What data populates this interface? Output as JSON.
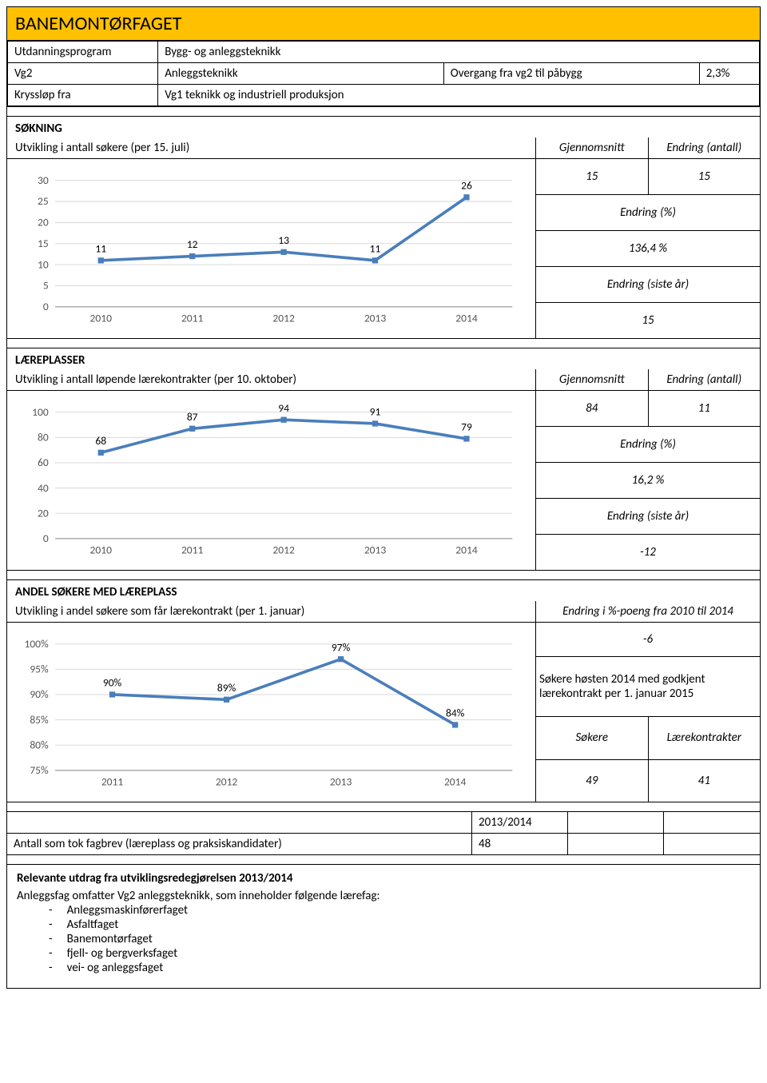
{
  "title": "BANEMONTØRFAGET",
  "info": {
    "rows": [
      [
        "Utdanningsprogram",
        "Bygg- og anleggsteknikk",
        "",
        ""
      ],
      [
        "Vg2",
        "Anleggsteknikk",
        "Overgang fra vg2 til påbygg",
        "2,3%"
      ],
      [
        "Kryssløp fra",
        "Vg1 teknikk og industriell produksjon",
        "",
        ""
      ]
    ]
  },
  "sokning": {
    "heading": "SØKNING",
    "subheading": "Utvikling i antall søkere (per 15. juli)",
    "stats_header": [
      "Gjennomsnitt",
      "Endring (antall)"
    ],
    "chart": {
      "type": "line",
      "categories": [
        "2010",
        "2011",
        "2012",
        "2013",
        "2014"
      ],
      "values": [
        11,
        12,
        13,
        11,
        26
      ],
      "line_color": "#4a7ebb",
      "marker_color": "#4a7ebb",
      "label_color": "#000000",
      "ymin": 0,
      "ymax": 30,
      "ystep": 5,
      "grid_color": "#d9d9d9",
      "axis_color": "#888888",
      "label_fontsize": 13,
      "tick_fontsize": 13
    },
    "stats": {
      "avg": "15",
      "change_abs": "15",
      "change_pct_label": "Endring (%)",
      "change_pct": "136,4 %",
      "change_last_label": "Endring (siste år)",
      "change_last": "15"
    }
  },
  "laereplasser": {
    "heading": "LÆREPLASSER",
    "subheading": "Utvikling i antall løpende lærekontrakter (per 10. oktober)",
    "stats_header": [
      "Gjennomsnitt",
      "Endring (antall)"
    ],
    "chart": {
      "type": "line",
      "categories": [
        "2010",
        "2011",
        "2012",
        "2013",
        "2014"
      ],
      "values": [
        68,
        87,
        94,
        91,
        79
      ],
      "line_color": "#4a7ebb",
      "marker_color": "#4a7ebb",
      "ymin": 0,
      "ymax": 100,
      "ystep": 20,
      "grid_color": "#d9d9d9",
      "axis_color": "#888888",
      "label_fontsize": 13,
      "tick_fontsize": 13
    },
    "stats": {
      "avg": "84",
      "change_abs": "11",
      "change_pct_label": "Endring (%)",
      "change_pct": "16,2 %",
      "change_last_label": "Endring (siste år)",
      "change_last": "-12"
    }
  },
  "andel": {
    "heading": "ANDEL SØKERE MED LÆREPLASS",
    "subheading": "Utvikling i andel søkere som får lærekontrakt (per 1. januar)",
    "stats_header_single": "Endring i %-poeng fra 2010 til 2014",
    "chart": {
      "type": "line",
      "categories": [
        "2011",
        "2012",
        "2013",
        "2014"
      ],
      "values": [
        90,
        89,
        97,
        84
      ],
      "value_labels": [
        "90%",
        "89%",
        "97%",
        "84%"
      ],
      "line_color": "#4a7ebb",
      "marker_color": "#4a7ebb",
      "ymin": 75,
      "ymax": 100,
      "ystep": 5,
      "ytick_suffix": "%",
      "grid_color": "#d9d9d9",
      "axis_color": "#888888",
      "label_fontsize": 13,
      "tick_fontsize": 13
    },
    "stats": {
      "change_val": "-6",
      "godkjent_text": "Søkere høsten 2014 med godkjent lærekontrakt per 1. januar 2015",
      "cols": [
        "Søkere",
        "Lærekontrakter"
      ],
      "sokere": "49",
      "kontrakter": "41"
    }
  },
  "fagbrev": {
    "col_header": "2013/2014",
    "label": "Antall som tok fagbrev (læreplass og praksiskandidater)",
    "value": "48"
  },
  "relevante": {
    "heading": "Relevante utdrag fra utviklingsredegjørelsen 2013/2014",
    "intro": "Anleggsfag omfatter Vg2 anleggsteknikk, som inneholder følgende lærefag:",
    "items": [
      "Anleggsmaskinførerfaget",
      "Asfaltfaget",
      "Banemontørfaget",
      "fjell- og bergverksfaget",
      "vei- og anleggsfaget"
    ]
  }
}
